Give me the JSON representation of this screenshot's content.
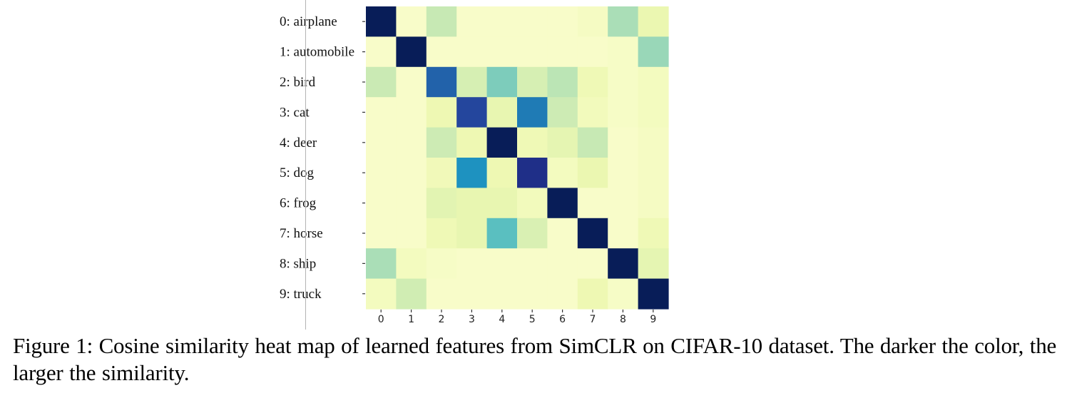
{
  "caption": {
    "label": "Figure 1:",
    "text": "Cosine similarity heat map of learned features from SimCLR on CIFAR-10 dataset. The darker the color, the larger the similarity."
  },
  "chart_data": {
    "type": "heatmap",
    "title": "",
    "xlabel": "",
    "ylabel": "",
    "row_labels": [
      "0: airplane",
      "1: automobile",
      "2: bird",
      "3: cat",
      "4: deer",
      "5: dog",
      "6: frog",
      "7: horse",
      "8: ship",
      "9: truck"
    ],
    "col_labels": [
      "0",
      "1",
      "2",
      "3",
      "4",
      "5",
      "6",
      "7",
      "8",
      "9"
    ],
    "colormap": "YlGnBu",
    "colormap_stops": [
      "#ffffd9",
      "#edf8b1",
      "#c7e9b4",
      "#7fcdbb",
      "#41b6c4",
      "#1d91c0",
      "#225ea8",
      "#253494",
      "#081d58"
    ],
    "value_range": [
      0,
      1
    ],
    "colorbar": false,
    "values": [
      [
        1.0,
        0.05,
        0.25,
        0.05,
        0.05,
        0.05,
        0.05,
        0.07,
        0.3,
        0.13
      ],
      [
        0.05,
        1.0,
        0.05,
        0.05,
        0.05,
        0.05,
        0.05,
        0.05,
        0.06,
        0.33
      ],
      [
        0.24,
        0.05,
        0.74,
        0.2,
        0.38,
        0.2,
        0.27,
        0.11,
        0.06,
        0.08
      ],
      [
        0.05,
        0.05,
        0.12,
        0.82,
        0.14,
        0.68,
        0.23,
        0.09,
        0.06,
        0.08
      ],
      [
        0.05,
        0.05,
        0.23,
        0.12,
        1.0,
        0.11,
        0.15,
        0.25,
        0.05,
        0.07
      ],
      [
        0.05,
        0.05,
        0.1,
        0.62,
        0.12,
        0.9,
        0.08,
        0.13,
        0.05,
        0.07
      ],
      [
        0.05,
        0.05,
        0.16,
        0.14,
        0.14,
        0.09,
        1.0,
        0.05,
        0.05,
        0.07
      ],
      [
        0.05,
        0.05,
        0.11,
        0.14,
        0.45,
        0.19,
        0.05,
        1.0,
        0.05,
        0.11
      ],
      [
        0.3,
        0.08,
        0.06,
        0.05,
        0.05,
        0.05,
        0.05,
        0.05,
        1.0,
        0.15
      ],
      [
        0.08,
        0.22,
        0.05,
        0.05,
        0.05,
        0.05,
        0.05,
        0.12,
        0.06,
        1.0
      ]
    ]
  }
}
